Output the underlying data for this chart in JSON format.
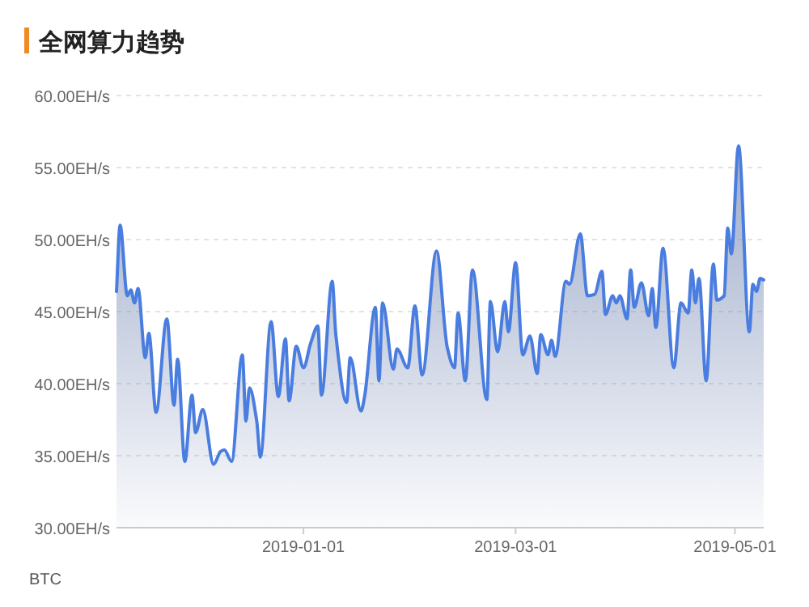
{
  "chart_data": {
    "type": "area",
    "title": "全网算力趋势",
    "x": [
      "2018-11-10",
      "2018-11-11",
      "2018-11-13",
      "2018-11-14",
      "2018-11-15",
      "2018-11-16",
      "2018-11-18",
      "2018-11-19",
      "2018-11-21",
      "2018-11-24",
      "2018-11-26",
      "2018-11-27",
      "2018-11-29",
      "2018-12-01",
      "2018-12-02",
      "2018-12-04",
      "2018-12-07",
      "2018-12-09",
      "2018-12-10",
      "2018-12-12",
      "2018-12-15",
      "2018-12-16",
      "2018-12-17",
      "2018-12-19",
      "2018-12-20",
      "2018-12-23",
      "2018-12-25",
      "2018-12-27",
      "2018-12-28",
      "2018-12-30",
      "2019-01-01",
      "2019-01-03",
      "2019-01-05",
      "2019-01-06",
      "2019-01-09",
      "2019-01-10",
      "2019-01-13",
      "2019-01-14",
      "2019-01-17",
      "2019-01-18",
      "2019-01-21",
      "2019-01-22",
      "2019-01-23",
      "2019-01-26",
      "2019-01-27",
      "2019-01-30",
      "2019-02-01",
      "2019-02-03",
      "2019-02-07",
      "2019-02-10",
      "2019-02-12",
      "2019-02-13",
      "2019-02-15",
      "2019-02-17",
      "2019-02-21",
      "2019-02-22",
      "2019-02-24",
      "2019-02-26",
      "2019-02-27",
      "2019-03-01",
      "2019-03-03",
      "2019-03-05",
      "2019-03-07",
      "2019-03-08",
      "2019-03-10",
      "2019-03-11",
      "2019-03-12",
      "2019-03-15",
      "2019-03-16",
      "2019-03-19",
      "2019-03-21",
      "2019-03-23",
      "2019-03-25",
      "2019-03-26",
      "2019-03-28",
      "2019-03-29",
      "2019-03-30",
      "2019-04-01",
      "2019-04-02",
      "2019-04-03",
      "2019-04-05",
      "2019-04-07",
      "2019-04-08",
      "2019-04-09",
      "2019-04-11",
      "2019-04-14",
      "2019-04-16",
      "2019-04-18",
      "2019-04-19",
      "2019-04-20",
      "2019-04-21",
      "2019-04-23",
      "2019-04-25",
      "2019-04-26",
      "2019-04-28",
      "2019-04-29",
      "2019-04-30",
      "2019-05-02",
      "2019-05-05",
      "2019-05-06",
      "2019-05-07",
      "2019-05-08",
      "2019-05-09"
    ],
    "series": [
      {
        "color": "#4a7de0",
        "values": [
          46.4,
          51.0,
          46.1,
          46.5,
          45.6,
          46.6,
          41.8,
          43.5,
          38.0,
          44.5,
          38.5,
          41.7,
          34.6,
          39.2,
          36.6,
          38.2,
          34.4,
          35.3,
          35.4,
          34.6,
          42.0,
          37.4,
          39.7,
          37.4,
          34.9,
          44.3,
          39.1,
          43.1,
          38.8,
          42.6,
          41.1,
          42.8,
          44.0,
          39.2,
          47.1,
          43.4,
          38.7,
          41.8,
          38.1,
          39.1,
          45.3,
          40.2,
          45.6,
          41.0,
          42.4,
          41.1,
          45.4,
          40.6,
          49.2,
          42.5,
          41.1,
          44.9,
          40.2,
          47.9,
          38.9,
          45.7,
          42.2,
          45.7,
          43.6,
          48.4,
          42.0,
          43.3,
          40.7,
          43.4,
          42.0,
          43.0,
          41.9,
          47.1,
          46.9,
          50.4,
          46.1,
          46.2,
          47.8,
          44.8,
          46.1,
          45.6,
          46.1,
          44.5,
          47.9,
          45.3,
          47.0,
          44.7,
          46.6,
          43.9,
          49.4,
          41.1,
          45.6,
          44.9,
          47.9,
          45.6,
          47.3,
          40.2,
          48.3,
          45.8,
          46.1,
          50.8,
          49.0,
          56.5,
          43.6,
          46.9,
          46.4,
          47.3,
          47.2
        ]
      }
    ],
    "xlim": [
      "2018-11-10",
      "2019-05-09"
    ],
    "xticks": [
      "2019-01-01",
      "2019-03-01",
      "2019-05-01"
    ],
    "ylim": [
      30,
      60
    ],
    "yticks": [
      {
        "value": 30,
        "label": "30.00EH/s"
      },
      {
        "value": 35,
        "label": "35.00EH/s"
      },
      {
        "value": 40,
        "label": "40.00EH/s"
      },
      {
        "value": 45,
        "label": "45.00EH/s"
      },
      {
        "value": 50,
        "label": "50.00EH/s"
      },
      {
        "value": 55,
        "label": "55.00EH/s"
      },
      {
        "value": 60,
        "label": "60.00EH/s"
      }
    ],
    "grid": "y",
    "line_style": "solid",
    "marker": "none",
    "annotations": [
      "BTC"
    ]
  }
}
